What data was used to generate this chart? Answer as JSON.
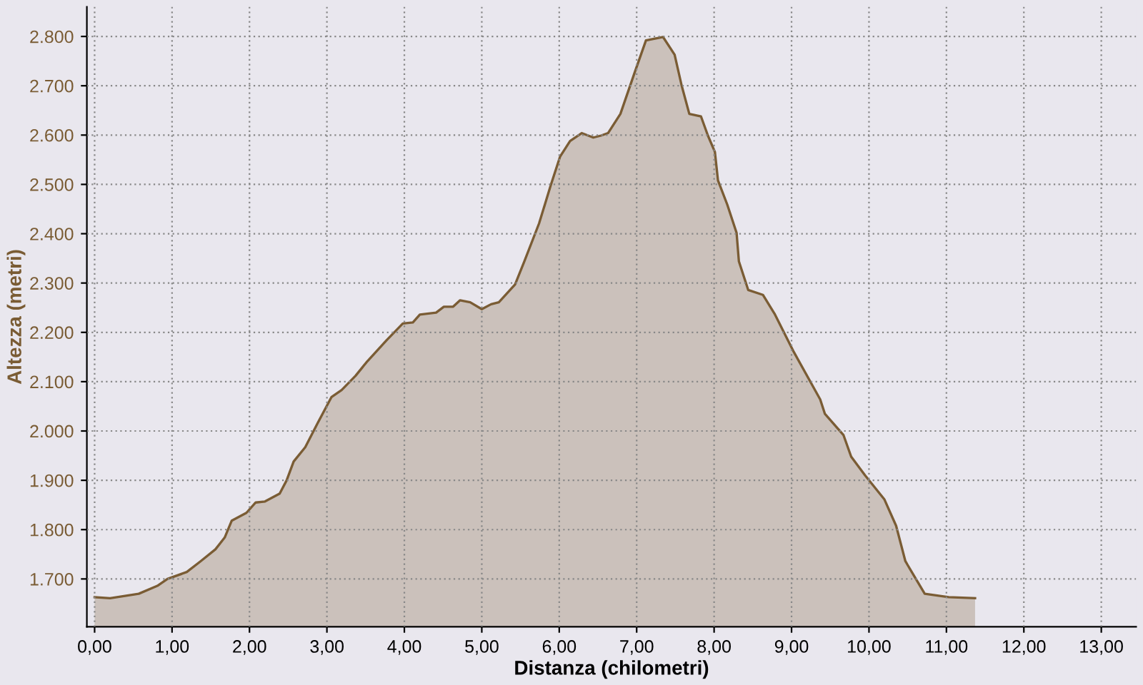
{
  "chart_data": {
    "type": "area",
    "xlabel": "Distanza (chilometri)",
    "ylabel": "Altezza (metri)",
    "series": [
      {
        "color": "#7a5c34",
        "x": [
          0,
          0.2,
          0.57,
          0.81,
          0.94,
          1.19,
          1.37,
          1.56,
          1.68,
          1.77,
          1.96,
          2.08,
          2.2,
          2.39,
          2.48,
          2.57,
          2.72,
          2.88,
          3.06,
          3.19,
          3.37,
          3.52,
          3.77,
          3.98,
          4.11,
          4.2,
          4.41,
          4.51,
          4.63,
          4.72,
          4.85,
          5.0,
          5.12,
          5.22,
          5.43,
          5.55,
          5.74,
          5.89,
          6.01,
          6.14,
          6.29,
          6.44,
          6.54,
          6.63,
          6.79,
          6.97,
          7.12,
          7.34,
          7.49,
          7.58,
          7.68,
          7.83,
          7.92,
          8.01,
          8.05,
          8.17,
          8.29,
          8.32,
          8.44,
          8.63,
          8.78,
          9.03,
          9.37,
          9.43,
          9.67,
          9.77,
          9.95,
          10.2,
          10.35,
          10.47,
          10.72,
          11.03,
          11.37
        ],
        "values": [
          1663,
          1661,
          1670,
          1686,
          1700,
          1714,
          1736,
          1760,
          1784,
          1818,
          1834,
          1855,
          1857,
          1873,
          1900,
          1938,
          1967,
          2016,
          2069,
          2083,
          2112,
          2141,
          2184,
          2218,
          2220,
          2236,
          2240,
          2252,
          2252,
          2265,
          2261,
          2247,
          2257,
          2261,
          2297,
          2344,
          2421,
          2498,
          2556,
          2588,
          2604,
          2595,
          2599,
          2604,
          2643,
          2725,
          2792,
          2799,
          2763,
          2701,
          2643,
          2638,
          2599,
          2566,
          2508,
          2459,
          2402,
          2344,
          2286,
          2276,
          2238,
          2160,
          2064,
          2035,
          1992,
          1948,
          1910,
          1861,
          1808,
          1736,
          1670,
          1663,
          1661
        ]
      }
    ],
    "xlim": [
      -0.1,
      13.45
    ],
    "ylim": [
      1603,
      2860
    ],
    "xticks": [
      {
        "value": 0,
        "label": "0,00"
      },
      {
        "value": 1,
        "label": "1,00"
      },
      {
        "value": 2,
        "label": "2,00"
      },
      {
        "value": 3,
        "label": "3,00"
      },
      {
        "value": 4,
        "label": "4,00"
      },
      {
        "value": 5,
        "label": "5,00"
      },
      {
        "value": 6,
        "label": "6,00"
      },
      {
        "value": 7,
        "label": "7,00"
      },
      {
        "value": 8,
        "label": "8,00"
      },
      {
        "value": 9,
        "label": "9,00"
      },
      {
        "value": 10,
        "label": "10,00"
      },
      {
        "value": 11,
        "label": "11,00"
      },
      {
        "value": 12,
        "label": "12,00"
      },
      {
        "value": 13,
        "label": "13,00"
      }
    ],
    "yticks": [
      {
        "value": 1700,
        "label": "1.700"
      },
      {
        "value": 1800,
        "label": "1.800"
      },
      {
        "value": 1900,
        "label": "1.900"
      },
      {
        "value": 2000,
        "label": "2.000"
      },
      {
        "value": 2100,
        "label": "2.100"
      },
      {
        "value": 2200,
        "label": "2.200"
      },
      {
        "value": 2300,
        "label": "2.300"
      },
      {
        "value": 2400,
        "label": "2.400"
      },
      {
        "value": 2500,
        "label": "2.500"
      },
      {
        "value": 2600,
        "label": "2.600"
      },
      {
        "value": 2700,
        "label": "2.700"
      },
      {
        "value": 2800,
        "label": "2.800"
      }
    ],
    "grid": true
  }
}
